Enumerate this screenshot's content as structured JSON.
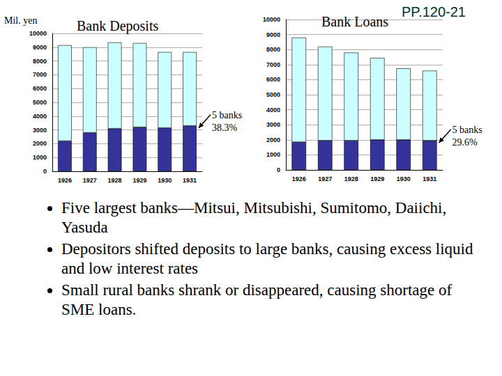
{
  "chart_data": [
    {
      "type": "bar",
      "title": "Bank Deposits",
      "y_label": "Mil. yen",
      "categories": [
        "1926",
        "1927",
        "1928",
        "1929",
        "1930",
        "1931"
      ],
      "series": [
        {
          "color": "#333399",
          "values": [
            2200,
            2800,
            3100,
            3200,
            3150,
            3300
          ]
        },
        {
          "color": "#ccffff",
          "values": [
            6950,
            6200,
            6250,
            6100,
            5500,
            5350
          ]
        }
      ],
      "stacked": true,
      "ylim": [
        0,
        10000
      ],
      "yticks": [
        0,
        1000,
        2000,
        3000,
        4000,
        5000,
        6000,
        7000,
        8000,
        9000,
        10000
      ],
      "grid": true,
      "annotation": [
        "5 banks",
        "38.3%"
      ]
    },
    {
      "type": "bar",
      "title": "Bank Loans",
      "categories": [
        "1926",
        "1927",
        "1928",
        "1929",
        "1930",
        "1931"
      ],
      "series": [
        {
          "color": "#333399",
          "values": [
            1850,
            1950,
            1950,
            2000,
            2000,
            1950
          ]
        },
        {
          "color": "#ccffff",
          "values": [
            6950,
            6250,
            5850,
            5450,
            4750,
            4650
          ]
        }
      ],
      "stacked": true,
      "ylim": [
        0,
        10000
      ],
      "yticks": [
        0,
        1000,
        2000,
        3000,
        4000,
        5000,
        6000,
        7000,
        8000,
        9000,
        10000
      ],
      "grid": true,
      "annotation": [
        "5 banks",
        "29.6%"
      ]
    }
  ],
  "page": "PP.120-21",
  "bullets": [
    "Five largest banks—Mitsui, Mitsubishi, Sumitomo, Daiichi, Yasuda",
    "Depositors shifted deposits to large banks, causing excess liquid and low interest rates",
    "Small rural banks shrank or disappeared, causing shortage of SME loans."
  ]
}
